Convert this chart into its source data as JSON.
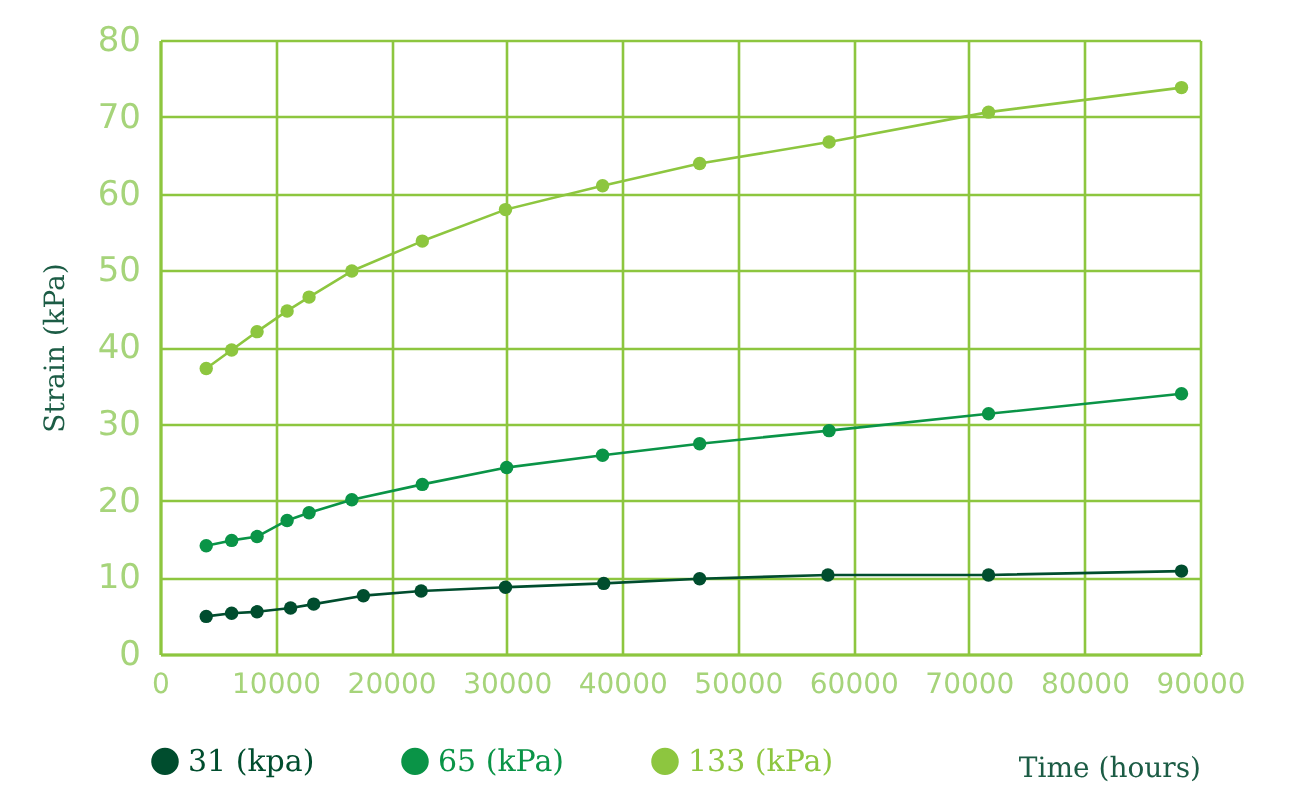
{
  "chart_data": {
    "type": "line",
    "xlabel": "Time (hours)",
    "ylabel": "Strain (kPa)",
    "xlim": [
      0,
      90000
    ],
    "xticks": [
      0,
      10000,
      20000,
      30000,
      40000,
      50000,
      60000,
      70000,
      80000,
      90000
    ],
    "ylim": [
      0,
      80
    ],
    "yticks": [
      0,
      10,
      20,
      30,
      40,
      50,
      60,
      70,
      80
    ],
    "grid": true,
    "legend": "bottom",
    "marker": "circle",
    "line_style": "solid",
    "series": [
      {
        "name": "31 (kpa)",
        "color": "#004d2e",
        "x": [
          4000,
          6200,
          8400,
          11300,
          13300,
          17600,
          22600,
          29900,
          38400,
          46700,
          57800,
          71700,
          88400
        ],
        "values": [
          4.9,
          5.3,
          5.5,
          6.0,
          6.5,
          7.6,
          8.2,
          8.7,
          9.2,
          9.8,
          10.3,
          10.3,
          10.8
        ]
      },
      {
        "name": "65 (kPa)",
        "color": "#0a9447",
        "x": [
          4000,
          6200,
          8400,
          11000,
          12900,
          16600,
          22700,
          30000,
          38300,
          46700,
          57900,
          71700,
          88400
        ],
        "values": [
          14.1,
          14.8,
          15.3,
          17.4,
          18.4,
          20.1,
          22.1,
          24.3,
          25.9,
          27.4,
          29.1,
          31.3,
          33.9
        ]
      },
      {
        "name": "133 (kPa)",
        "color": "#8dc63f",
        "x": [
          4000,
          6200,
          8400,
          11000,
          12900,
          16600,
          22700,
          29900,
          38300,
          46700,
          57900,
          71700,
          88400
        ],
        "values": [
          37.2,
          39.6,
          42.0,
          44.7,
          46.5,
          49.9,
          53.8,
          57.9,
          61.0,
          63.9,
          66.7,
          70.6,
          73.8
        ]
      }
    ]
  }
}
